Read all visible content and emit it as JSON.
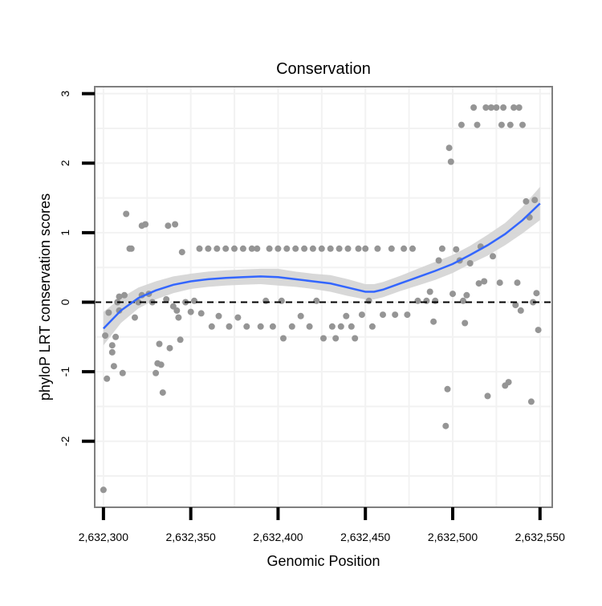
{
  "chart_data": {
    "type": "scatter",
    "title": "Conservation",
    "xlabel": "Genomic Position",
    "ylabel": "phyloP LRT conservation scores",
    "xlim": [
      2632295,
      2632557
    ],
    "ylim": [
      -2.95,
      3.1
    ],
    "x_ticks": [
      2632300,
      2632350,
      2632400,
      2632450,
      2632500,
      2632550
    ],
    "x_tick_labels": [
      "2,632,300",
      "2,632,350",
      "2,632,400",
      "2,632,450",
      "2,632,500",
      "2,632,550"
    ],
    "y_ticks": [
      -2,
      -1,
      0,
      1,
      2,
      3
    ],
    "y_tick_labels": [
      "-2",
      "-1",
      "0",
      "1",
      "2",
      "3"
    ],
    "grid": true,
    "reference_line": {
      "y": 0,
      "style": "dashed"
    },
    "colors": {
      "points": "#959595",
      "smooth": "#3366ff",
      "band": "#d4d4d4",
      "panel_border": "#7f7f7f",
      "grid": "#f2f2f2",
      "axis": "#000000"
    },
    "points": [
      [
        2632300,
        -2.7
      ],
      [
        2632301,
        -0.48
      ],
      [
        2632302,
        -1.1
      ],
      [
        2632303,
        -0.15
      ],
      [
        2632305,
        -0.62
      ],
      [
        2632305,
        -0.72
      ],
      [
        2632306,
        -0.92
      ],
      [
        2632307,
        -0.5
      ],
      [
        2632308,
        0.0
      ],
      [
        2632309,
        0.08
      ],
      [
        2632309,
        -0.12
      ],
      [
        2632311,
        -1.02
      ],
      [
        2632312,
        0.1
      ],
      [
        2632313,
        1.27
      ],
      [
        2632315,
        0.77
      ],
      [
        2632316,
        0.77
      ],
      [
        2632318,
        -0.22
      ],
      [
        2632320,
        0.0
      ],
      [
        2632322,
        0.1
      ],
      [
        2632322,
        1.1
      ],
      [
        2632324,
        1.12
      ],
      [
        2632326,
        0.12
      ],
      [
        2632328,
        0.0
      ],
      [
        2632330,
        -1.02
      ],
      [
        2632331,
        -0.88
      ],
      [
        2632332,
        -0.6
      ],
      [
        2632333,
        -0.9
      ],
      [
        2632334,
        -1.3
      ],
      [
        2632336,
        0.04
      ],
      [
        2632337,
        1.1
      ],
      [
        2632338,
        -0.66
      ],
      [
        2632340,
        -0.06
      ],
      [
        2632341,
        1.12
      ],
      [
        2632342,
        -0.12
      ],
      [
        2632343,
        -0.22
      ],
      [
        2632344,
        -0.54
      ],
      [
        2632345,
        0.72
      ],
      [
        2632347,
        0.0
      ],
      [
        2632350,
        -0.14
      ],
      [
        2632352,
        0.02
      ],
      [
        2632355,
        0.77
      ],
      [
        2632356,
        -0.16
      ],
      [
        2632360,
        0.77
      ],
      [
        2632362,
        -0.35
      ],
      [
        2632365,
        0.77
      ],
      [
        2632366,
        -0.2
      ],
      [
        2632370,
        0.77
      ],
      [
        2632372,
        -0.35
      ],
      [
        2632375,
        0.77
      ],
      [
        2632377,
        -0.22
      ],
      [
        2632380,
        0.77
      ],
      [
        2632382,
        -0.35
      ],
      [
        2632385,
        0.77
      ],
      [
        2632388,
        0.77
      ],
      [
        2632390,
        -0.35
      ],
      [
        2632393,
        0.02
      ],
      [
        2632395,
        0.77
      ],
      [
        2632397,
        -0.35
      ],
      [
        2632400,
        0.77
      ],
      [
        2632402,
        0.02
      ],
      [
        2632403,
        -0.52
      ],
      [
        2632405,
        0.77
      ],
      [
        2632408,
        -0.35
      ],
      [
        2632410,
        0.77
      ],
      [
        2632413,
        -0.2
      ],
      [
        2632415,
        0.77
      ],
      [
        2632418,
        -0.35
      ],
      [
        2632420,
        0.77
      ],
      [
        2632422,
        0.02
      ],
      [
        2632425,
        0.77
      ],
      [
        2632426,
        -0.52
      ],
      [
        2632430,
        0.77
      ],
      [
        2632431,
        -0.35
      ],
      [
        2632433,
        -0.52
      ],
      [
        2632435,
        0.77
      ],
      [
        2632436,
        -0.35
      ],
      [
        2632439,
        -0.2
      ],
      [
        2632440,
        0.77
      ],
      [
        2632442,
        -0.35
      ],
      [
        2632444,
        -0.52
      ],
      [
        2632446,
        0.77
      ],
      [
        2632448,
        -0.18
      ],
      [
        2632450,
        0.77
      ],
      [
        2632452,
        0.02
      ],
      [
        2632454,
        -0.35
      ],
      [
        2632457,
        0.77
      ],
      [
        2632460,
        -0.18
      ],
      [
        2632465,
        0.77
      ],
      [
        2632467,
        -0.18
      ],
      [
        2632472,
        0.77
      ],
      [
        2632474,
        -0.18
      ],
      [
        2632477,
        0.77
      ],
      [
        2632480,
        0.02
      ],
      [
        2632485,
        0.02
      ],
      [
        2632487,
        0.15
      ],
      [
        2632489,
        -0.28
      ],
      [
        2632490,
        0.02
      ],
      [
        2632492,
        0.6
      ],
      [
        2632494,
        0.77
      ],
      [
        2632496,
        -1.78
      ],
      [
        2632497,
        -1.25
      ],
      [
        2632498,
        2.22
      ],
      [
        2632499,
        2.02
      ],
      [
        2632500,
        0.12
      ],
      [
        2632502,
        0.76
      ],
      [
        2632504,
        0.6
      ],
      [
        2632505,
        2.55
      ],
      [
        2632506,
        0.02
      ],
      [
        2632507,
        -0.3
      ],
      [
        2632508,
        0.1
      ],
      [
        2632510,
        0.56
      ],
      [
        2632512,
        2.8
      ],
      [
        2632514,
        2.55
      ],
      [
        2632515,
        0.27
      ],
      [
        2632516,
        0.8
      ],
      [
        2632518,
        0.3
      ],
      [
        2632519,
        2.8
      ],
      [
        2632520,
        -1.35
      ],
      [
        2632522,
        2.8
      ],
      [
        2632523,
        0.66
      ],
      [
        2632525,
        2.8
      ],
      [
        2632527,
        0.28
      ],
      [
        2632528,
        2.55
      ],
      [
        2632529,
        2.8
      ],
      [
        2632530,
        -1.2
      ],
      [
        2632532,
        -1.15
      ],
      [
        2632533,
        2.55
      ],
      [
        2632535,
        2.8
      ],
      [
        2632536,
        -0.04
      ],
      [
        2632537,
        0.28
      ],
      [
        2632538,
        2.8
      ],
      [
        2632539,
        -0.12
      ],
      [
        2632540,
        2.55
      ],
      [
        2632542,
        1.45
      ],
      [
        2632544,
        1.22
      ],
      [
        2632545,
        -1.43
      ],
      [
        2632546,
        0.0
      ],
      [
        2632547,
        1.47
      ],
      [
        2632548,
        0.13
      ],
      [
        2632549,
        -0.4
      ]
    ],
    "smooth": {
      "x": [
        2632300,
        2632310,
        2632320,
        2632330,
        2632340,
        2632350,
        2632360,
        2632370,
        2632380,
        2632390,
        2632400,
        2632410,
        2632420,
        2632430,
        2632440,
        2632450,
        2632455,
        2632460,
        2632470,
        2632480,
        2632490,
        2632500,
        2632510,
        2632520,
        2632530,
        2632540,
        2632550
      ],
      "y": [
        -0.38,
        -0.12,
        0.06,
        0.17,
        0.25,
        0.3,
        0.33,
        0.35,
        0.36,
        0.37,
        0.36,
        0.33,
        0.3,
        0.27,
        0.21,
        0.15,
        0.15,
        0.18,
        0.27,
        0.36,
        0.45,
        0.55,
        0.68,
        0.82,
        0.98,
        1.18,
        1.42
      ],
      "lower": [
        -0.62,
        -0.3,
        -0.09,
        0.04,
        0.13,
        0.19,
        0.22,
        0.24,
        0.25,
        0.26,
        0.24,
        0.22,
        0.19,
        0.15,
        0.09,
        0.04,
        0.04,
        0.07,
        0.16,
        0.24,
        0.32,
        0.42,
        0.55,
        0.67,
        0.82,
        0.99,
        1.18
      ],
      "upper": [
        -0.14,
        0.06,
        0.21,
        0.3,
        0.37,
        0.41,
        0.44,
        0.46,
        0.47,
        0.48,
        0.48,
        0.44,
        0.41,
        0.39,
        0.33,
        0.26,
        0.26,
        0.29,
        0.38,
        0.48,
        0.58,
        0.68,
        0.81,
        0.97,
        1.14,
        1.37,
        1.66
      ]
    }
  }
}
